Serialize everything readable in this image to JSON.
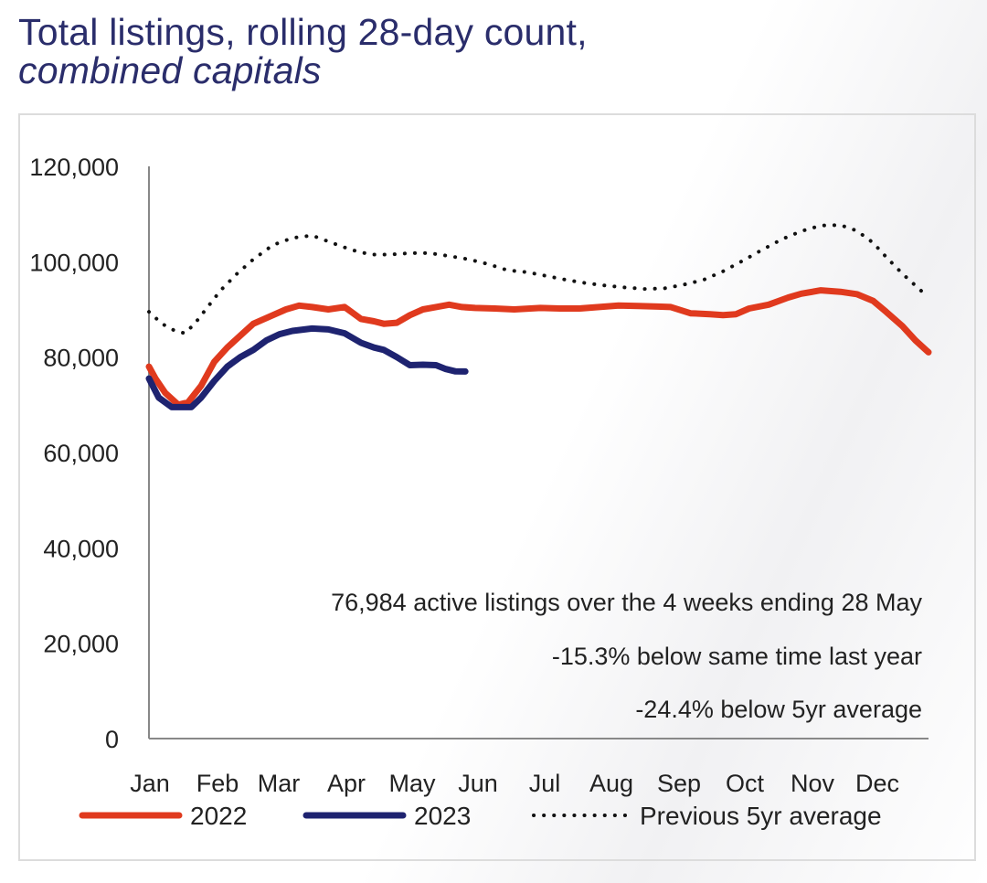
{
  "title": {
    "line1": "Total listings, rolling 28-day count,",
    "line2": "combined capitals"
  },
  "colors": {
    "s2022": "#e03a1e",
    "s2023": "#1e2370",
    "avg": "#111111",
    "axis": "#888888"
  },
  "chart_data": {
    "type": "line",
    "title": "Total listings, rolling 28-day count, combined capitals",
    "xlabel": "",
    "ylabel": "",
    "ylim": [
      0,
      120000
    ],
    "yticks": [
      "0",
      "20,000",
      "40,000",
      "60,000",
      "80,000",
      "100,000",
      "120,000"
    ],
    "categories": [
      "Jan",
      "Feb",
      "Mar",
      "Apr",
      "May",
      "Jun",
      "Jul",
      "Aug",
      "Sep",
      "Oct",
      "Nov",
      "Dec"
    ],
    "grid": false,
    "legend": "bottom",
    "series": [
      {
        "name": "2022",
        "style": "solid-thick",
        "x": [
          0,
          0.1,
          0.25,
          0.45,
          0.6,
          0.8,
          1.0,
          1.2,
          1.4,
          1.6,
          1.85,
          2.1,
          2.3,
          2.5,
          2.75,
          3.0,
          3.25,
          3.45,
          3.6,
          3.8,
          4.0,
          4.2,
          4.4,
          4.6,
          4.8,
          5.0,
          5.3,
          5.6,
          6.0,
          6.3,
          6.6,
          6.9,
          7.2,
          7.5,
          7.8,
          8.0,
          8.3,
          8.6,
          8.8,
          9.0,
          9.2,
          9.5,
          9.8,
          10.0,
          10.3,
          10.6,
          10.85,
          11.1,
          11.3,
          11.55,
          11.75,
          11.95
        ],
        "values": [
          78000,
          75500,
          72500,
          70000,
          70500,
          74000,
          79000,
          82000,
          84500,
          87000,
          88500,
          90000,
          90800,
          90500,
          90000,
          90500,
          88000,
          87500,
          87000,
          87200,
          88800,
          90000,
          90500,
          91000,
          90500,
          90300,
          90200,
          90000,
          90300,
          90200,
          90200,
          90500,
          90800,
          90700,
          90600,
          90500,
          89200,
          89000,
          88800,
          89000,
          90200,
          91000,
          92500,
          93300,
          94000,
          93700,
          93200,
          91800,
          89500,
          86500,
          83500,
          81000
        ]
      },
      {
        "name": "2023",
        "style": "solid-thick",
        "x": [
          0,
          0.15,
          0.35,
          0.5,
          0.65,
          0.8,
          1.0,
          1.2,
          1.4,
          1.6,
          1.8,
          2.0,
          2.2,
          2.5,
          2.75,
          3.0,
          3.25,
          3.45,
          3.6,
          3.8,
          4.0,
          4.2,
          4.4,
          4.55,
          4.7,
          4.85
        ],
        "values": [
          75500,
          71500,
          69500,
          69500,
          69500,
          71500,
          75000,
          78000,
          80000,
          81500,
          83500,
          84800,
          85500,
          86000,
          85800,
          85000,
          83000,
          82000,
          81500,
          80000,
          78300,
          78400,
          78300,
          77500,
          77000,
          76984
        ]
      },
      {
        "name": "Previous 5yr average",
        "style": "dotted",
        "x": [
          0,
          0.2,
          0.4,
          0.55,
          0.7,
          0.9,
          1.1,
          1.35,
          1.6,
          1.9,
          2.2,
          2.5,
          2.8,
          3.1,
          3.4,
          3.7,
          4.0,
          4.3,
          4.6,
          4.9,
          5.2,
          5.5,
          5.8,
          6.1,
          6.4,
          6.7,
          7.0,
          7.3,
          7.6,
          7.9,
          8.2,
          8.5,
          8.8,
          9.1,
          9.4,
          9.7,
          10.0,
          10.3,
          10.6,
          10.85,
          11.1,
          11.3,
          11.55,
          11.75,
          11.95
        ],
        "values": [
          89500,
          87000,
          85500,
          85000,
          87000,
          90500,
          94000,
          97500,
          100500,
          103500,
          105000,
          105500,
          104000,
          102500,
          101500,
          101500,
          101800,
          101800,
          101200,
          100500,
          99500,
          98200,
          97800,
          97000,
          96200,
          95500,
          95000,
          94600,
          94300,
          94400,
          95200,
          96200,
          98000,
          100200,
          102500,
          104700,
          106400,
          107600,
          107700,
          106500,
          104000,
          101000,
          97500,
          95000,
          92500
        ]
      }
    ],
    "annotations": [
      "76,984 active listings over the 4 weeks ending 28 May",
      "-15.3% below same time last year",
      "-24.4% below 5yr average"
    ]
  }
}
